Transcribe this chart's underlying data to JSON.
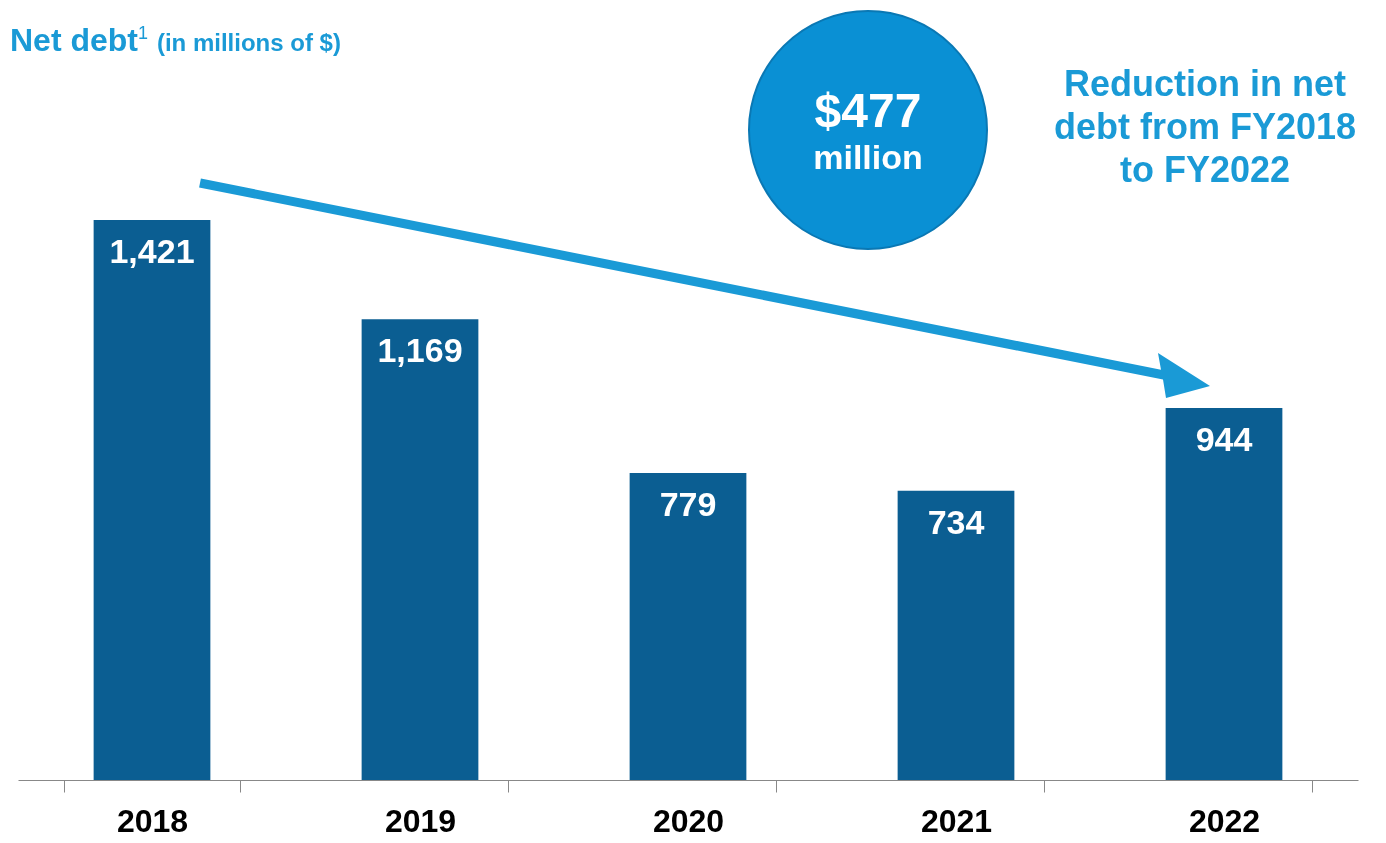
{
  "chart_data": {
    "type": "bar",
    "title": "Net debt$^{1}$ (in millions of $)",
    "categories": [
      "2018",
      "2019",
      "2020",
      "2021",
      "2022"
    ],
    "values": [
      1421,
      1169,
      779,
      734,
      944
    ],
    "color": "#0b5e92",
    "value_labels": [
      "1,421",
      "1,169",
      "779",
      "734",
      "944"
    ],
    "annotations": [
      "$477 million",
      "Reduction in net debt from FY2018 to FY2022"
    ]
  }
}
